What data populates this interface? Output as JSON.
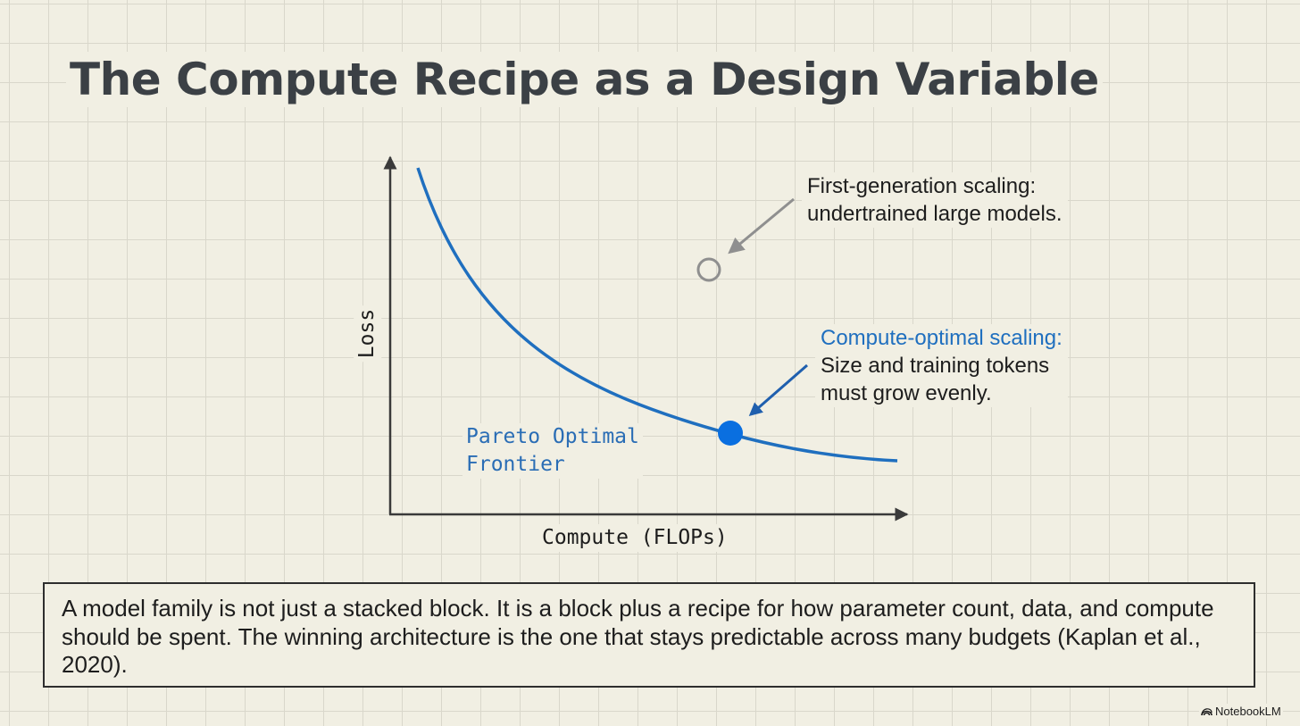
{
  "title": "The Compute Recipe as a Design Variable",
  "diagram": {
    "y_axis_label": "Loss",
    "x_axis_label": "Compute (FLOPs)",
    "curve_label_line1": "Pareto Optimal",
    "curve_label_line2": "Frontier",
    "first_gen": {
      "line1": "First-generation scaling:",
      "line2": "undertrained large models."
    },
    "compute_optimal": {
      "heading": "Compute-optimal scaling:",
      "line1": "Size and training tokens",
      "line2": "must grow evenly."
    },
    "colors": {
      "curve": "#1f6fbf",
      "optimal_point": "#0a6fe0",
      "first_gen_point": "#8f8f8f",
      "axes": "#3a3a3a"
    }
  },
  "caption": "A model family is not just a stacked block. It is a block plus a recipe for how parameter count, data, and compute should be spent. The winning architecture is the one that stays predictable across many budgets (Kaplan et al., 2020).",
  "brand": {
    "name": "NotebookLM",
    "icon": "notebooklm-logo-icon"
  }
}
